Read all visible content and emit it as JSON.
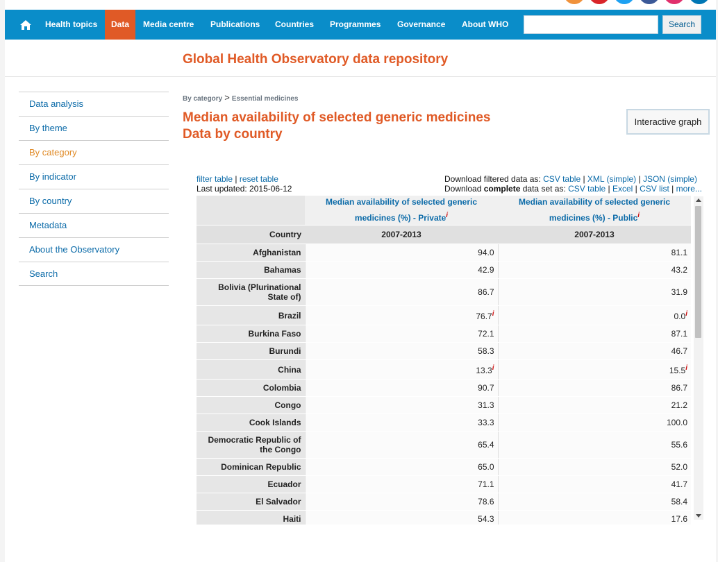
{
  "social": [
    {
      "name": "rss-icon",
      "color": "#f0923c"
    },
    {
      "name": "youtube-icon",
      "color": "#d9252a"
    },
    {
      "name": "twitter-icon",
      "color": "#1da1f2"
    },
    {
      "name": "facebook-icon",
      "color": "#3b5998"
    },
    {
      "name": "instagram-icon",
      "color": "#e1306c"
    },
    {
      "name": "linkedin-icon",
      "color": "#0077b5"
    }
  ],
  "nav": {
    "items": [
      {
        "label": "Health topics",
        "active": false
      },
      {
        "label": "Data",
        "active": true
      },
      {
        "label": "Media centre",
        "active": false
      },
      {
        "label": "Publications",
        "active": false
      },
      {
        "label": "Countries",
        "active": false
      },
      {
        "label": "Programmes",
        "active": false
      },
      {
        "label": "Governance",
        "active": false
      },
      {
        "label": "About WHO",
        "active": false
      }
    ],
    "search_value": "",
    "search_label": "Search"
  },
  "site_title": "Global Health Observatory data repository",
  "sidebar": {
    "items": [
      {
        "label": "Data analysis",
        "active": false
      },
      {
        "label": "By theme",
        "active": false
      },
      {
        "label": "By category",
        "active": true
      },
      {
        "label": "By indicator",
        "active": false
      },
      {
        "label": "By country",
        "active": false
      },
      {
        "label": "Metadata",
        "active": false
      },
      {
        "label": "About the Observatory",
        "active": false
      },
      {
        "label": "Search",
        "active": false
      }
    ]
  },
  "breadcrumb": {
    "first": "By category",
    "separator": ">",
    "second": "Essential medicines"
  },
  "page_title": {
    "line1": "Median availability of selected generic medicines",
    "line2": "Data by country"
  },
  "graph_button": "Interactive graph",
  "table_links": {
    "filter": "filter table",
    "reset": "reset table",
    "sep": "|",
    "updated": "Last updated: 2015-06-12"
  },
  "downloads": {
    "filtered_prefix": "Download filtered data as:",
    "filtered": [
      "CSV table",
      "XML (simple)",
      "JSON (simple)"
    ],
    "complete_prefix": "Download",
    "complete_bold": "complete",
    "complete_suffix": "data set as:",
    "complete": [
      "CSV table",
      "Excel",
      "CSV list",
      "more..."
    ]
  },
  "table": {
    "col_headers": [
      "Median availability of selected generic medicines (%) - Private",
      "Median availability of selected generic medicines (%) - Public"
    ],
    "country_label": "Country",
    "period": [
      "2007-2013",
      "2007-2013"
    ],
    "info_mark": "i",
    "rows": [
      {
        "country": "Afghanistan",
        "private": "94.0",
        "public": "81.1"
      },
      {
        "country": "Bahamas",
        "private": "42.9",
        "public": "43.2"
      },
      {
        "country": "Bolivia (Plurinational State of)",
        "private": "86.7",
        "public": "31.9"
      },
      {
        "country": "Brazil",
        "private": "76.7",
        "public": "0.0",
        "note": true
      },
      {
        "country": "Burkina Faso",
        "private": "72.1",
        "public": "87.1"
      },
      {
        "country": "Burundi",
        "private": "58.3",
        "public": "46.7"
      },
      {
        "country": "China",
        "private": "13.3",
        "public": "15.5",
        "note": true
      },
      {
        "country": "Colombia",
        "private": "90.7",
        "public": "86.7"
      },
      {
        "country": "Congo",
        "private": "31.3",
        "public": "21.2"
      },
      {
        "country": "Cook Islands",
        "private": "33.3",
        "public": "100.0"
      },
      {
        "country": "Democratic Republic of the Congo",
        "private": "65.4",
        "public": "55.6"
      },
      {
        "country": "Dominican Republic",
        "private": "65.0",
        "public": "52.0"
      },
      {
        "country": "Ecuador",
        "private": "71.1",
        "public": "41.7"
      },
      {
        "country": "El Salvador",
        "private": "78.6",
        "public": "58.4"
      },
      {
        "country": "Haiti",
        "private": "54.3",
        "public": "17.6"
      }
    ]
  }
}
